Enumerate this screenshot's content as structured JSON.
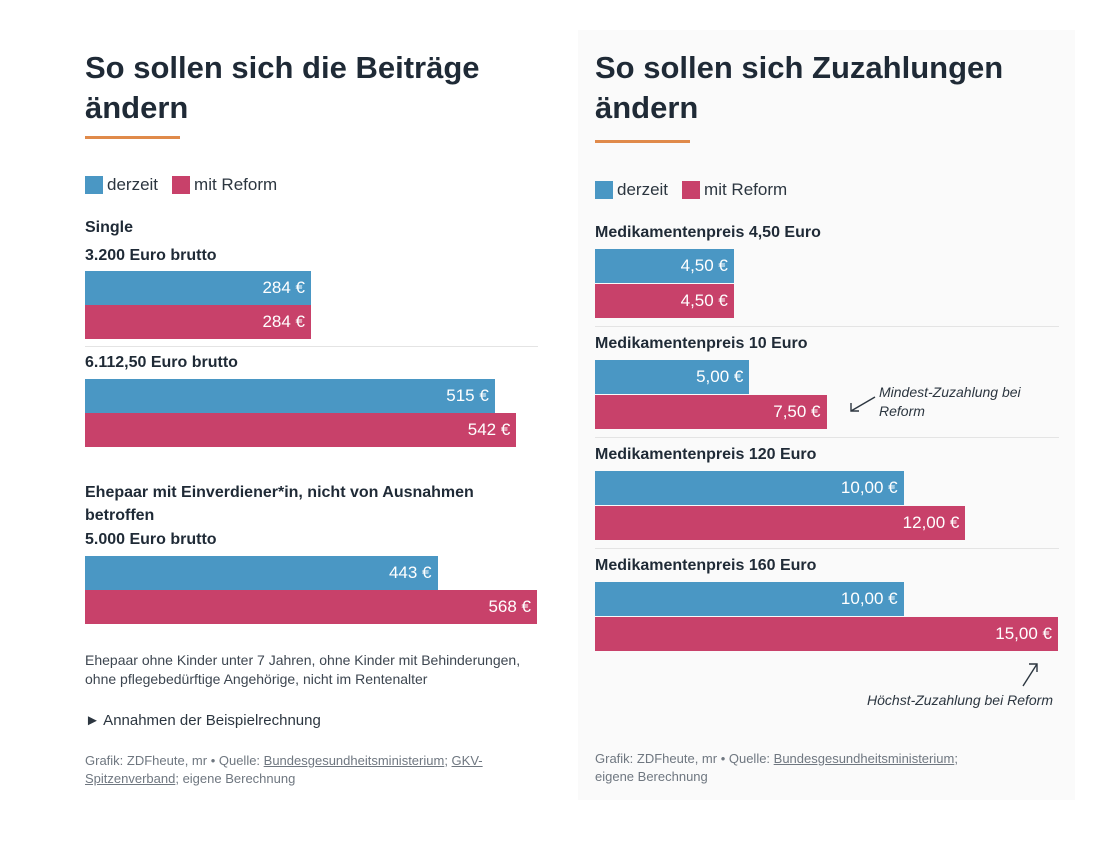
{
  "colors": {
    "current": "#4a97c4",
    "reform": "#c8416a",
    "accent": "#e08a4a"
  },
  "legend": {
    "current": "derzeit",
    "reform": "mit Reform"
  },
  "left_panel": {
    "title_line1": "So sollen sich die Beiträge",
    "title_line2": "ändern",
    "group1_label": "Single",
    "note": "Ehepaar ohne Kinder unter 7 Jahren, ohne Kinder mit Behinderungen, ohne pflegebedürftige Angehörige, nicht im Rentenalter",
    "assumptions_link": "► Annahmen der Beispielrechnung",
    "source": {
      "prefix": "Grafik: ZDFheute, mr • Quelle: ",
      "link1": "Bundesgesundheitsministerium",
      "sep": "; ",
      "link2": "GKV-Spitzenverband",
      "suffix": "; eigene Berechnung"
    }
  },
  "right_panel": {
    "title_line1": "So sollen sich Zuzahlungen",
    "title_line2": "ändern",
    "annotation_min": "Mindest-Zuzahlung bei Reform",
    "annotation_max": "Höchst-Zuzahlung bei Reform",
    "source": {
      "prefix": "Grafik: ZDFheute, mr • Quelle: ",
      "link1": "Bundesgesundheitsministerium",
      "suffix": ";",
      "line2": "eigene Berechnung"
    }
  },
  "chart_data": [
    {
      "type": "bar",
      "orientation": "horizontal",
      "title": "So sollen sich die Beiträge ändern",
      "legend_position": "top-left",
      "grid": false,
      "xlim": [
        0,
        568
      ],
      "categories": [
        "3.200 Euro brutto",
        "6.112,50 Euro brutto",
        "Ehepaar mit Einverdiener*in, nicht von Ausnahmen betroffen"
      ],
      "category_sublabels": [
        "",
        "",
        "5.000 Euro brutto"
      ],
      "series": [
        {
          "name": "derzeit",
          "values": [
            284,
            515,
            443
          ],
          "labels": [
            "284 €",
            "515 €",
            "443 €"
          ]
        },
        {
          "name": "mit Reform",
          "values": [
            284,
            542,
            568
          ],
          "labels": [
            "284 €",
            "542 €",
            "568 €"
          ]
        }
      ]
    },
    {
      "type": "bar",
      "orientation": "horizontal",
      "title": "So sollen sich Zuzahlungen ändern",
      "legend_position": "top-left",
      "grid": false,
      "xlim": [
        0,
        15
      ],
      "categories": [
        "Medikamentenpreis 4,50 Euro",
        "Medikamentenpreis 10 Euro",
        "Medikamentenpreis 120 Euro",
        "Medikamentenpreis 160 Euro"
      ],
      "series": [
        {
          "name": "derzeit",
          "values": [
            4.5,
            5.0,
            10.0,
            10.0
          ],
          "labels": [
            "4,50 €",
            "5,00 €",
            "10,00 €",
            "10,00 €"
          ]
        },
        {
          "name": "mit Reform",
          "values": [
            4.5,
            7.5,
            12.0,
            15.0
          ],
          "labels": [
            "4,50 €",
            "7,50 €",
            "12,00 €",
            "15,00 €"
          ]
        }
      ]
    }
  ]
}
